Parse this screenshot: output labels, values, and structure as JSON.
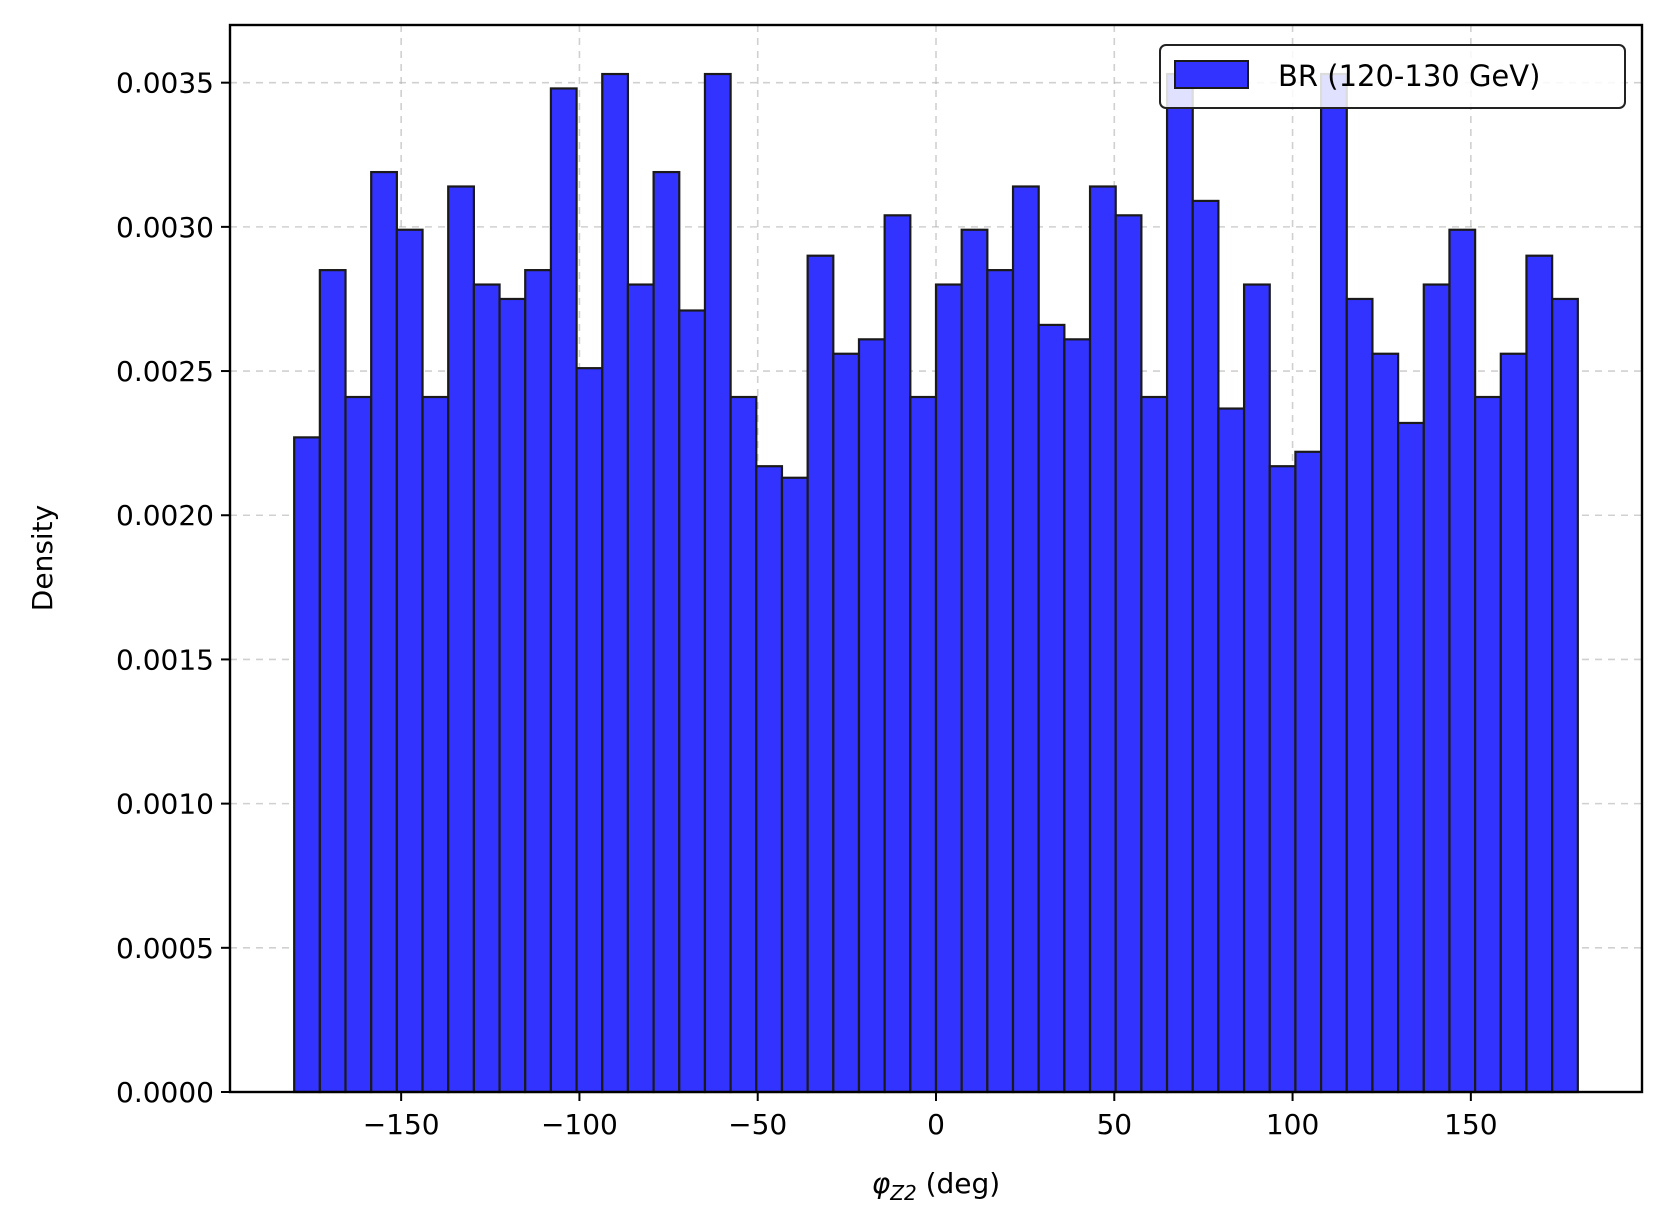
{
  "chart_data": {
    "type": "bar",
    "title": "",
    "xlabel_symbol": "φ",
    "xlabel_subscript": "Z2",
    "xlabel_unit": " (deg)",
    "ylabel": "Density",
    "bin_start": -180,
    "bin_width": 7.2,
    "xlim": [
      -198,
      198
    ],
    "ylim": [
      0,
      0.0037
    ],
    "xticks": [
      -150,
      -100,
      -50,
      0,
      50,
      100,
      150
    ],
    "xtick_labels": [
      "−150",
      "−100",
      "−50",
      "0",
      "50",
      "100",
      "150"
    ],
    "yticks": [
      0,
      0.0005,
      0.001,
      0.0015,
      0.002,
      0.0025,
      0.003,
      0.0035
    ],
    "ytick_labels": [
      "0.0000",
      "0.0005",
      "0.0010",
      "0.0015",
      "0.0020",
      "0.0025",
      "0.0030",
      "0.0035"
    ],
    "grid": true,
    "legend_position": "top-right",
    "series": [
      {
        "name": "BR (120-130 GeV)",
        "color": "#3333ff",
        "edge_color": "#1a1a1a",
        "values": [
          0.00227,
          0.00285,
          0.00241,
          0.00319,
          0.00299,
          0.00241,
          0.00314,
          0.0028,
          0.00275,
          0.00285,
          0.00348,
          0.00251,
          0.00353,
          0.0028,
          0.00319,
          0.00271,
          0.00353,
          0.00241,
          0.00217,
          0.00213,
          0.0029,
          0.00256,
          0.00261,
          0.00304,
          0.00241,
          0.0028,
          0.00299,
          0.00285,
          0.00314,
          0.00266,
          0.00261,
          0.00314,
          0.00304,
          0.00241,
          0.00353,
          0.00309,
          0.00237,
          0.0028,
          0.00217,
          0.00222,
          0.00353,
          0.00275,
          0.00256,
          0.00232,
          0.0028,
          0.00299,
          0.00241,
          0.00256,
          0.0029,
          0.00275
        ]
      }
    ]
  }
}
